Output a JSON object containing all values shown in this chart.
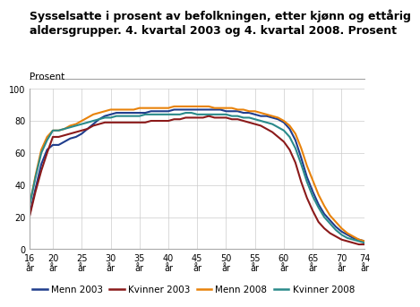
{
  "title_line1": "Sysselsatte i prosent av befolkningen, etter kjønn og ettårig",
  "title_line2": "aldersgrupper. 4. kvartal 2003 og 4. kvartal 2008. Prosent",
  "ylabel": "Prosent",
  "xlim": [
    16,
    74
  ],
  "ylim": [
    0,
    100
  ],
  "xtick_positions": [
    16,
    20,
    25,
    30,
    35,
    40,
    45,
    50,
    55,
    60,
    65,
    70,
    74
  ],
  "xtick_labels": [
    "16\når",
    "20\når",
    "25\når",
    "30\når",
    "35\når",
    "40\når",
    "45\når",
    "50\når",
    "55\når",
    "60\når",
    "65\når",
    "70\når",
    "74\når"
  ],
  "ytick_positions": [
    0,
    20,
    40,
    60,
    80,
    100
  ],
  "ages": [
    16,
    17,
    18,
    19,
    20,
    21,
    22,
    23,
    24,
    25,
    26,
    27,
    28,
    29,
    30,
    31,
    32,
    33,
    34,
    35,
    36,
    37,
    38,
    39,
    40,
    41,
    42,
    43,
    44,
    45,
    46,
    47,
    48,
    49,
    50,
    51,
    52,
    53,
    54,
    55,
    56,
    57,
    58,
    59,
    60,
    61,
    62,
    63,
    64,
    65,
    66,
    67,
    68,
    69,
    70,
    71,
    72,
    73,
    74
  ],
  "menn_2003": [
    22,
    38,
    53,
    62,
    65,
    65,
    67,
    69,
    70,
    72,
    75,
    78,
    81,
    83,
    84,
    85,
    85,
    85,
    85,
    85,
    85,
    86,
    86,
    86,
    86,
    87,
    87,
    87,
    87,
    87,
    87,
    87,
    87,
    87,
    86,
    86,
    86,
    85,
    85,
    84,
    83,
    83,
    82,
    81,
    79,
    75,
    68,
    57,
    45,
    36,
    28,
    22,
    18,
    14,
    11,
    9,
    7,
    6,
    5
  ],
  "kvinner_2003": [
    21,
    36,
    49,
    60,
    70,
    70,
    71,
    72,
    73,
    74,
    75,
    77,
    78,
    79,
    79,
    79,
    79,
    79,
    79,
    79,
    79,
    80,
    80,
    80,
    80,
    81,
    81,
    82,
    82,
    82,
    82,
    83,
    82,
    82,
    82,
    81,
    81,
    80,
    79,
    78,
    77,
    75,
    73,
    70,
    67,
    62,
    54,
    42,
    32,
    24,
    17,
    13,
    10,
    8,
    6,
    5,
    4,
    3,
    3
  ],
  "menn_2008": [
    28,
    46,
    62,
    70,
    74,
    74,
    75,
    77,
    78,
    80,
    82,
    84,
    85,
    86,
    87,
    87,
    87,
    87,
    87,
    88,
    88,
    88,
    88,
    88,
    88,
    89,
    89,
    89,
    89,
    89,
    89,
    89,
    88,
    88,
    88,
    88,
    87,
    87,
    86,
    86,
    85,
    84,
    83,
    82,
    80,
    77,
    72,
    63,
    52,
    43,
    34,
    27,
    21,
    17,
    13,
    10,
    8,
    6,
    5
  ],
  "kvinner_2008": [
    28,
    45,
    60,
    68,
    74,
    74,
    75,
    76,
    77,
    78,
    79,
    80,
    81,
    82,
    82,
    83,
    83,
    83,
    83,
    83,
    84,
    84,
    84,
    84,
    84,
    84,
    84,
    85,
    85,
    84,
    84,
    84,
    84,
    84,
    84,
    83,
    83,
    82,
    82,
    81,
    80,
    79,
    78,
    76,
    74,
    70,
    63,
    53,
    42,
    33,
    26,
    20,
    16,
    12,
    9,
    7,
    6,
    5,
    4
  ],
  "colors": {
    "menn_2003": "#1f3d8c",
    "kvinner_2003": "#8b1a1a",
    "menn_2008": "#e8820a",
    "kvinner_2008": "#2a8a8a"
  },
  "legend_labels": [
    "Menn 2003",
    "Kvinner 2003",
    "Menn 2008",
    "Kvinner 2008"
  ],
  "linewidth": 1.5,
  "background_color": "#ffffff",
  "grid_color": "#cccccc",
  "title_fontsize": 9.0,
  "label_fontsize": 7.5,
  "tick_fontsize": 7.0,
  "legend_fontsize": 7.5
}
